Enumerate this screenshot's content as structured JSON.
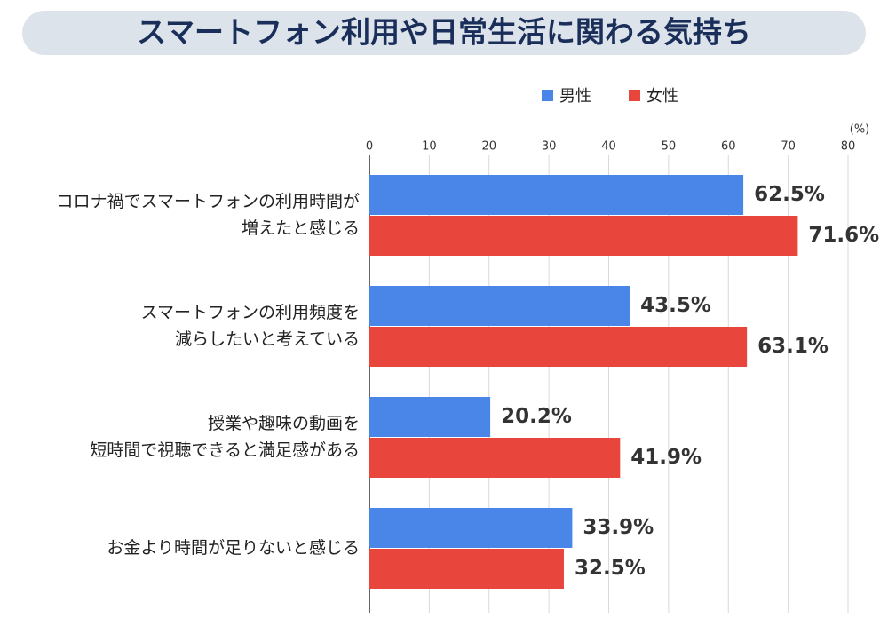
{
  "chart_data": {
    "type": "hbar",
    "title": "スマートフォン利用や日常生活に関わる気持ち",
    "xlabel": "(%)",
    "categories": [
      "コロナ禍でスマートフォンの利用時間が\n増えたと感じる",
      "スマートフォンの利用頻度を\n減らしたいと考えている",
      "授業や趣味の動画を\n短時間で視聴できると満足感がある",
      "お金より時間が足りないと感じる"
    ],
    "series": [
      {
        "name": "男性",
        "color": "#4a86e8",
        "values": [
          62.5,
          43.5,
          20.2,
          33.9
        ],
        "value_labels": [
          "62.5%",
          "43.5%",
          "20.2%",
          "33.9%"
        ]
      },
      {
        "name": "女性",
        "color": "#e8453c",
        "values": [
          71.6,
          63.1,
          41.9,
          32.5
        ],
        "value_labels": [
          "71.6%",
          "63.1%",
          "41.9%",
          "32.5%"
        ]
      }
    ],
    "xlim": [
      0,
      80
    ],
    "xticks": [
      0,
      10,
      20,
      30,
      40,
      50,
      60,
      70,
      80
    ],
    "grid": true
  }
}
